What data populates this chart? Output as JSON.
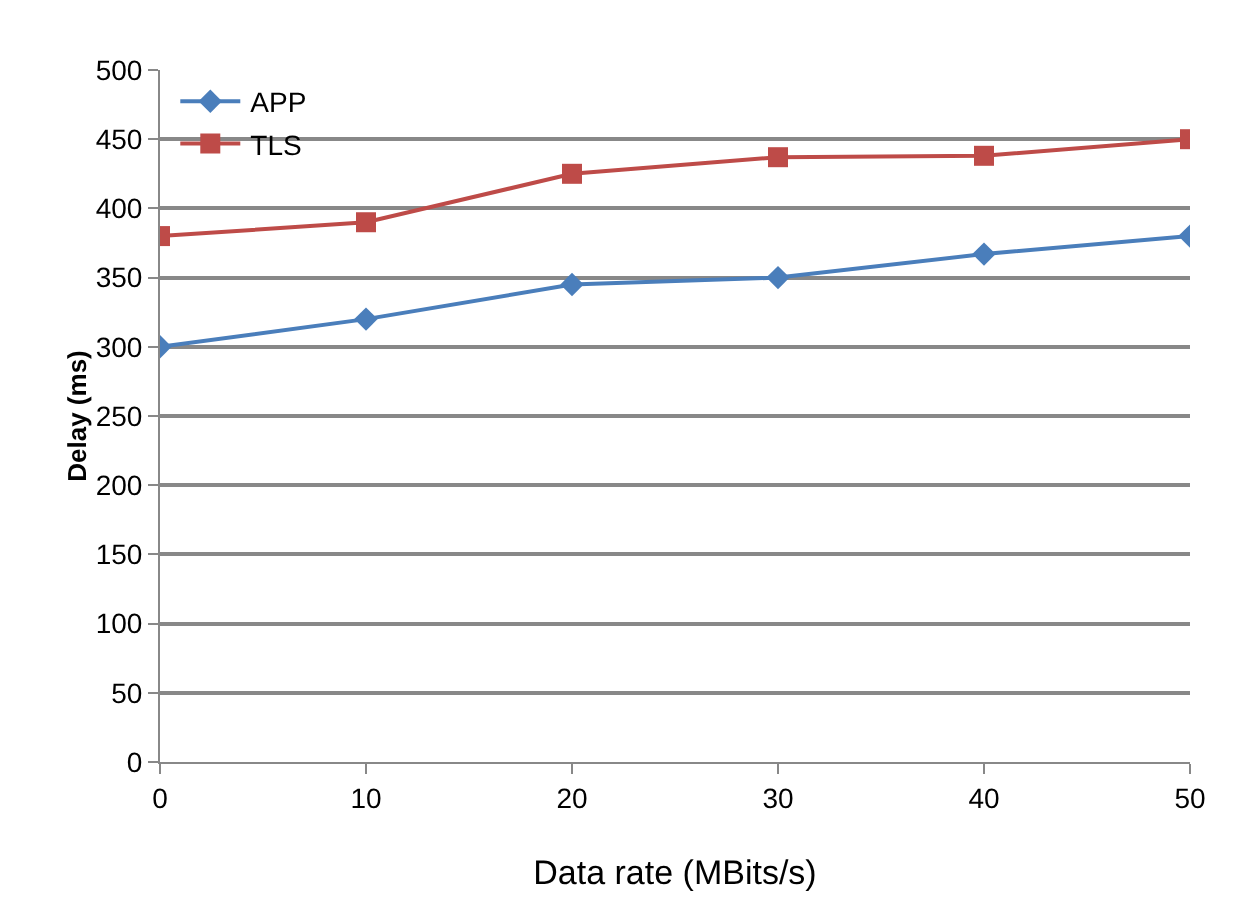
{
  "chart_data": {
    "type": "line",
    "xlabel": "Data rate (MBits/s)",
    "ylabel": "Delay (ms)",
    "x": [
      0,
      10,
      20,
      30,
      40,
      50
    ],
    "series": [
      {
        "name": "APP",
        "color": "#4a7ebb",
        "marker": "diamond",
        "values": [
          300,
          320,
          345,
          350,
          367,
          380
        ]
      },
      {
        "name": "TLS",
        "color": "#be4b48",
        "marker": "square",
        "values": [
          380,
          390,
          425,
          437,
          438,
          450
        ]
      }
    ],
    "xlim": [
      0,
      50
    ],
    "xticks": [
      0,
      10,
      20,
      30,
      40,
      50
    ],
    "ylim": [
      0,
      500
    ],
    "yticks": [
      0,
      50,
      100,
      150,
      200,
      250,
      300,
      350,
      400,
      450,
      500
    ],
    "grid": "y",
    "legend": "top left"
  }
}
